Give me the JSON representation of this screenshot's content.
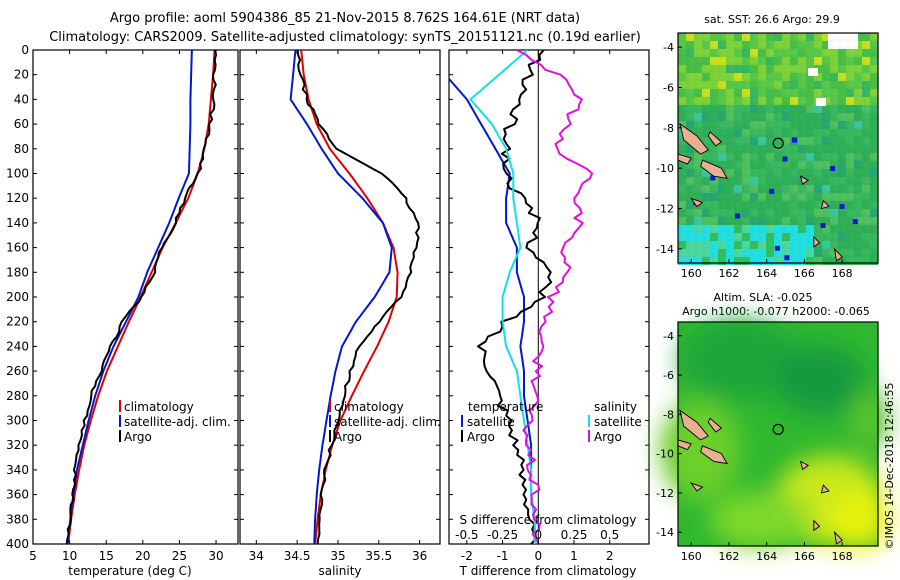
{
  "title": {
    "line1": "Argo profile: aoml 5904386_85 21-Nov-2015 8.762S 164.61E (NRT data)",
    "line2": "Climatology: CARS2009. Satellite-adjusted climatology: synTS_20151121.nc (0.19d earlier)"
  },
  "credit": "©IMOS 14-Dec-2018 12:46:55",
  "depth_ticks": [
    0,
    20,
    40,
    60,
    80,
    100,
    120,
    140,
    160,
    180,
    200,
    220,
    240,
    260,
    280,
    300,
    320,
    340,
    360,
    380,
    400
  ],
  "colors": {
    "argo": "#000000",
    "climatology": "#e00000",
    "satellite": "#0018d0",
    "sat_salinity": "#10e0e8",
    "magenta": "#e010e0"
  },
  "legends": {
    "temp": [
      "climatology",
      "satellite-adj. clim.",
      "Argo"
    ],
    "sal": [
      "climatology",
      "satellite-adj. clim.",
      "Argo"
    ],
    "diff_temp_head": "temperature",
    "diff_temp": [
      "satellite",
      "Argo"
    ],
    "diff_sal_head": "salinity",
    "diff_sal": [
      "satellite",
      "Argo"
    ]
  },
  "chart_data": [
    {
      "type": "line",
      "name": "temperature-profile",
      "xlabel": "temperature (deg C)",
      "ylabel": "depth",
      "xlim": [
        5,
        33
      ],
      "ylim": [
        400,
        0
      ],
      "xticks": [
        5,
        10,
        15,
        20,
        25,
        30
      ],
      "series": [
        {
          "name": "climatology",
          "color": "#e00000",
          "x": [
            29.8,
            29.6,
            29.3,
            29.0,
            28.4,
            27.5,
            26.2,
            24.5,
            22.7,
            21.2,
            19.7,
            18.1,
            16.6,
            15.1,
            13.9,
            12.9,
            12.0,
            11.3,
            10.7,
            10.2,
            9.8
          ],
          "y": [
            0,
            20,
            40,
            60,
            80,
            100,
            120,
            140,
            160,
            180,
            200,
            220,
            240,
            260,
            280,
            300,
            320,
            340,
            360,
            380,
            400
          ]
        },
        {
          "name": "satellite-adj. clim.",
          "color": "#0018d0",
          "x": [
            26.7,
            26.6,
            26.5,
            26.5,
            26.4,
            26.3,
            24.9,
            23.6,
            22.1,
            20.6,
            19.4,
            17.7,
            16.0,
            14.6,
            13.5,
            12.6,
            11.8,
            11.0,
            10.5,
            10.1,
            9.7
          ],
          "y": [
            0,
            20,
            40,
            60,
            80,
            100,
            120,
            140,
            160,
            180,
            200,
            220,
            240,
            260,
            280,
            300,
            320,
            340,
            360,
            380,
            400
          ]
        },
        {
          "name": "Argo",
          "color": "#000000",
          "x": [
            29.9,
            29.8,
            29.7,
            29.2,
            28.5,
            27.6,
            25.7,
            24.5,
            22.5,
            21.5,
            19.8,
            17.2,
            15.7,
            14.2,
            12.9,
            12.1,
            11.4,
            10.8,
            10.5,
            10.0,
            9.6
          ],
          "y": [
            0,
            20,
            40,
            60,
            80,
            100,
            120,
            140,
            160,
            180,
            200,
            220,
            240,
            260,
            280,
            300,
            320,
            340,
            360,
            380,
            400
          ]
        }
      ]
    },
    {
      "type": "line",
      "name": "salinity-profile",
      "xlabel": "salinity",
      "ylabel": "depth",
      "xlim": [
        33.8,
        36.25
      ],
      "ylim": [
        400,
        0
      ],
      "xticks": [
        34,
        34.5,
        35,
        35.5,
        36
      ],
      "xticklabels": [
        "34",
        "34.5",
        "35",
        "35.5",
        "36"
      ],
      "series": [
        {
          "name": "climatology",
          "color": "#e00000",
          "x": [
            34.55,
            34.58,
            34.64,
            34.74,
            34.9,
            35.14,
            35.36,
            35.55,
            35.68,
            35.73,
            35.72,
            35.62,
            35.48,
            35.32,
            35.17,
            35.03,
            34.93,
            34.85,
            34.79,
            34.75,
            34.72
          ],
          "y": [
            0,
            20,
            40,
            60,
            80,
            100,
            120,
            140,
            160,
            180,
            200,
            220,
            240,
            260,
            280,
            300,
            320,
            340,
            360,
            380,
            400
          ]
        },
        {
          "name": "satellite-adj. clim.",
          "color": "#0018d0",
          "x": [
            34.48,
            34.45,
            34.42,
            34.62,
            34.8,
            35.0,
            35.3,
            35.55,
            35.66,
            35.63,
            35.45,
            35.22,
            35.05,
            34.97,
            34.91,
            34.86,
            34.81,
            34.77,
            34.74,
            34.72,
            34.71
          ],
          "y": [
            0,
            20,
            40,
            60,
            80,
            100,
            120,
            140,
            160,
            180,
            200,
            220,
            240,
            260,
            280,
            300,
            320,
            340,
            360,
            380,
            400
          ]
        },
        {
          "name": "Argo",
          "color": "#000000",
          "x": [
            34.5,
            34.54,
            34.62,
            34.77,
            34.98,
            35.55,
            35.82,
            35.98,
            35.96,
            35.89,
            35.77,
            35.5,
            35.26,
            35.16,
            35.07,
            35.0,
            34.92,
            34.85,
            34.8,
            34.77,
            34.75
          ],
          "y": [
            0,
            20,
            40,
            60,
            80,
            100,
            120,
            140,
            160,
            180,
            200,
            220,
            240,
            260,
            280,
            300,
            320,
            340,
            360,
            380,
            400
          ]
        }
      ]
    },
    {
      "type": "line",
      "name": "difference-profile",
      "xlabel": "T difference from climatology",
      "xlabel_top": "S difference from climatology",
      "xlim": [
        -2.5,
        3.1
      ],
      "ylim": [
        400,
        0
      ],
      "xticks": [
        -2,
        -1,
        0,
        1,
        2
      ],
      "xticks_top": [
        -0.5,
        -0.25,
        0,
        0.25,
        0.5
      ],
      "xticks_top_labels": [
        "-0.5",
        "-0.25",
        "0",
        "0.25",
        "0.5"
      ],
      "series": [
        {
          "name": "temperature satellite",
          "color": "#0018d0",
          "x": [
            -2.8,
            -2.6,
            -2.0,
            -1.6,
            -1.2,
            -0.8,
            -0.9,
            -0.9,
            -0.6,
            -0.6,
            -0.4,
            -0.4,
            -0.5,
            -0.4,
            -0.4,
            -0.3,
            -0.2,
            -0.2,
            -0.2,
            -0.1,
            -0.1
          ],
          "y": [
            0,
            20,
            40,
            60,
            80,
            100,
            120,
            140,
            160,
            180,
            200,
            220,
            240,
            260,
            280,
            300,
            320,
            340,
            360,
            380,
            400
          ]
        },
        {
          "name": "temperature Argo",
          "color": "#000000",
          "x": [
            0.1,
            -0.3,
            -0.5,
            -0.8,
            -0.9,
            -0.9,
            -0.5,
            0.0,
            -0.2,
            0.3,
            0.1,
            -0.9,
            -1.6,
            -1.3,
            -1.1,
            -0.8,
            -0.6,
            -0.5,
            -0.3,
            -0.2,
            -0.2
          ],
          "y": [
            0,
            20,
            40,
            60,
            80,
            100,
            120,
            140,
            160,
            180,
            200,
            220,
            240,
            260,
            280,
            300,
            320,
            340,
            360,
            380,
            400
          ]
        },
        {
          "name": "salinity satellite",
          "color": "#10e0e8",
          "x": [
            -0.3,
            -1.1,
            -1.9,
            -1.3,
            -0.9,
            -0.7,
            -0.7,
            -0.6,
            -0.5,
            -0.8,
            -1.0,
            -1.0,
            -0.9,
            -0.6,
            -0.5,
            -0.4,
            -0.3,
            -0.2,
            -0.2,
            -0.1,
            -0.1
          ],
          "y": [
            0,
            20,
            40,
            60,
            80,
            100,
            120,
            140,
            160,
            180,
            200,
            220,
            240,
            260,
            280,
            300,
            320,
            340,
            360,
            380,
            400
          ]
        },
        {
          "name": "salinity Argo",
          "color": "#e010e0",
          "x": [
            -0.5,
            0.5,
            1.2,
            0.8,
            0.4,
            1.5,
            1.0,
            1.2,
            0.7,
            0.9,
            0.4,
            0.2,
            0.0,
            0.0,
            -0.1,
            -0.3,
            -0.3,
            -0.2,
            -0.1,
            -0.1,
            0.0
          ],
          "y": [
            0,
            20,
            40,
            60,
            80,
            100,
            120,
            140,
            160,
            180,
            200,
            220,
            240,
            260,
            280,
            300,
            320,
            340,
            360,
            380,
            400
          ]
        }
      ]
    },
    {
      "type": "heatmap",
      "name": "sst-map",
      "title": "sat. SST: 26.6 Argo: 29.9",
      "xlim": [
        159.3,
        169.9
      ],
      "ylim": [
        -14.7,
        -3.3
      ],
      "xticks": [
        160,
        162,
        164,
        166,
        168
      ],
      "yticks": [
        -4,
        -6,
        -8,
        -10,
        -12,
        -14
      ],
      "argo_marker": {
        "lon": 164.61,
        "lat": -8.762
      }
    },
    {
      "type": "heatmap",
      "name": "sla-map",
      "title": "Altim. SLA: -0.025",
      "subtitle": "Argo h1000: -0.077 h2000: -0.065",
      "xlim": [
        159.3,
        169.9
      ],
      "ylim": [
        -14.7,
        -3.3
      ],
      "xticks": [
        160,
        162,
        164,
        166,
        168
      ],
      "yticks": [
        -4,
        -6,
        -8,
        -10,
        -12,
        -14
      ],
      "argo_marker": {
        "lon": 164.61,
        "lat": -8.762
      }
    }
  ]
}
